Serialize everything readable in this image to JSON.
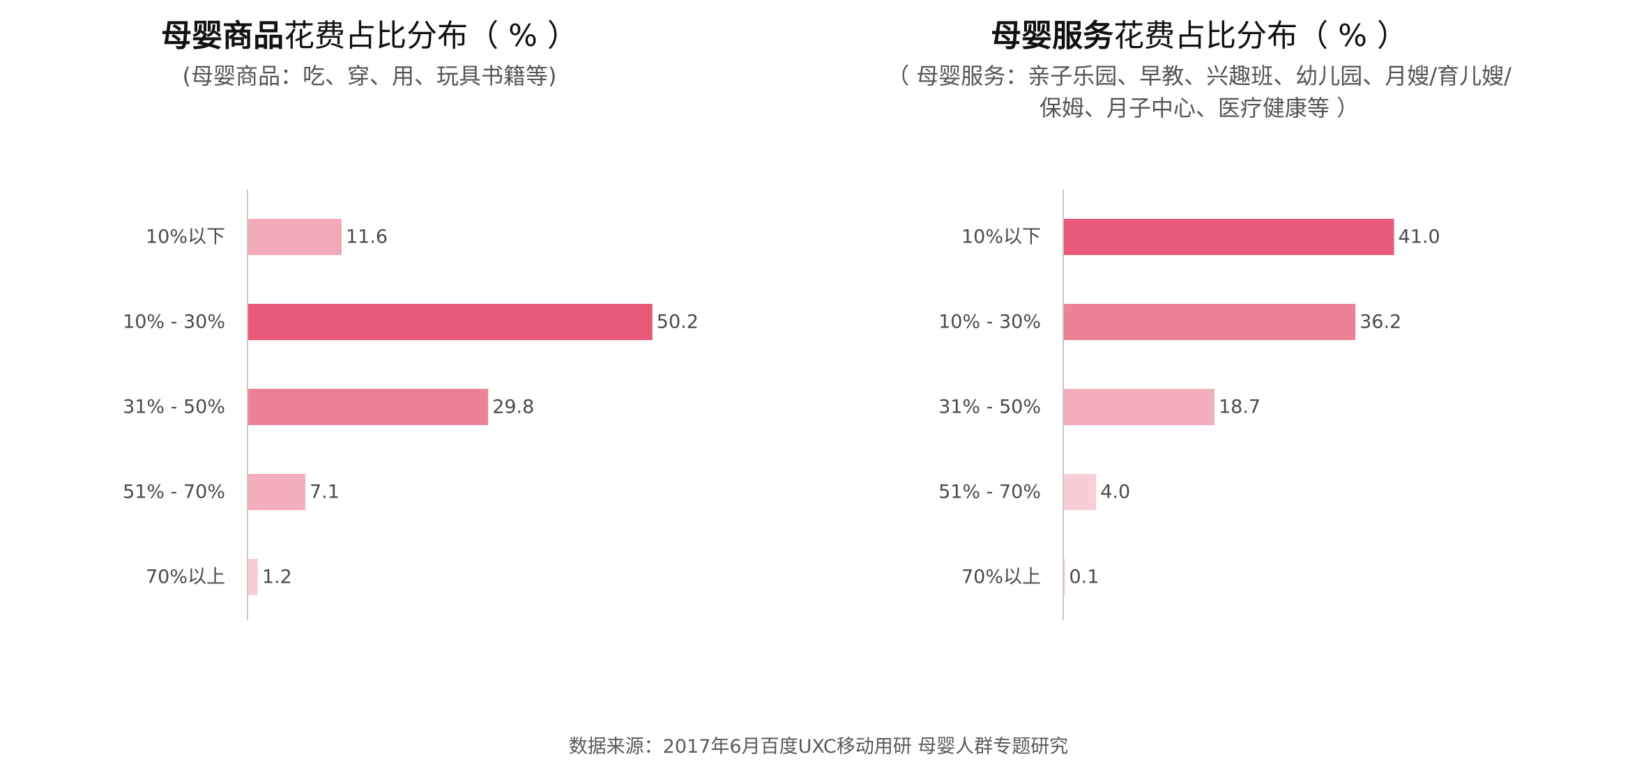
{
  "charts": [
    {
      "title_bold": "母婴商品",
      "title_rest": "花费占比分布（ % ）",
      "subtitle_lines": [
        "(母婴商品：吃、穿、用、玩具书籍等)"
      ]
    },
    {
      "title_bold": "母婴服务",
      "title_rest": "花费占比分布（ % ）",
      "subtitle_lines": [
        "（ 母婴服务：亲子乐园、早教、兴趣班、幼儿园、月嫂/育儿嫂/",
        "保姆、月子中心、医疗健康等 ）"
      ]
    }
  ],
  "source": "数据来源：2017年6月百度UXC移动用研 母婴人群专题研究",
  "chart_data": [
    {
      "type": "bar",
      "orientation": "horizontal",
      "categories": [
        "10%以下",
        "10% - 30%",
        "31% - 50%",
        "51% - 70%",
        "70%以上"
      ],
      "values": [
        11.6,
        50.2,
        29.8,
        7.1,
        1.2
      ],
      "labels": [
        "11.6",
        "50.2",
        "29.8",
        "7.1",
        "1.2"
      ],
      "colors": [
        "#f2a9ba",
        "#e85a77",
        "#ee8196",
        "#f2aebd",
        "#f8cdd6"
      ],
      "xlim": [
        0,
        60
      ],
      "grid": false,
      "legend": "none"
    },
    {
      "type": "bar",
      "orientation": "horizontal",
      "categories": [
        "10%以下",
        "10% - 30%",
        "31% - 50%",
        "51% - 70%",
        "70%以上"
      ],
      "values": [
        41.0,
        36.2,
        18.7,
        4.0,
        0.1
      ],
      "labels": [
        "41.0",
        "36.2",
        "18.7",
        "4.0",
        "0.1"
      ],
      "colors": [
        "#e85a77",
        "#ee8196",
        "#f2aebd",
        "#f8cdd6",
        "#f8cdd6"
      ],
      "xlim": [
        0,
        60
      ],
      "grid": false,
      "legend": "none"
    }
  ]
}
